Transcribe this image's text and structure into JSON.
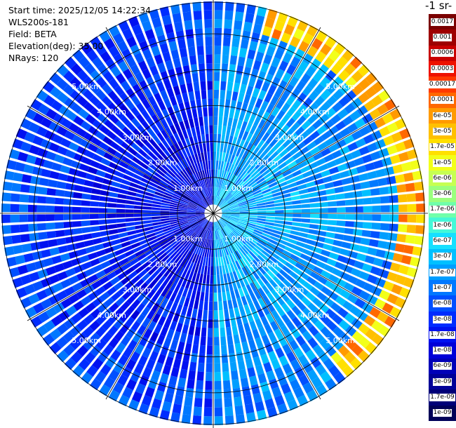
{
  "info": {
    "start_time": "Start time: 2025/12/05 14:22:34",
    "station": "WLS200s-181",
    "field": "Field: BETA",
    "elevation": "Elevation(deg): 35.00",
    "nrays": "NRays: 120"
  },
  "units_label": "-1 sr-",
  "colorbar": {
    "labels": [
      "0.0017",
      "0.001",
      "0.0006",
      "0.0003",
      "0.00017",
      "0.0001",
      "6e-05",
      "3e-05",
      "1.7e-05",
      "1e-05",
      "6e-06",
      "3e-06",
      "1.7e-06",
      "1e-06",
      "6e-07",
      "3e-07",
      "1.7e-07",
      "1e-07",
      "6e-08",
      "3e-08",
      "1.7e-08",
      "1e-08",
      "6e-09",
      "3e-09",
      "1.7e-09",
      "1e-09"
    ],
    "colors": [
      "#7a0000",
      "#9e0000",
      "#c80000",
      "#ee1200",
      "#ff3a00",
      "#ff6800",
      "#ff9a00",
      "#ffc000",
      "#ffe000",
      "#f2ff1a",
      "#c6ff52",
      "#9aff7e",
      "#70ffaa",
      "#44f8d8",
      "#16e0ff",
      "#00c0ff",
      "#009eff",
      "#0078ff",
      "#0050ff",
      "#002cff",
      "#0010f0",
      "#0000d8",
      "#0000b8",
      "#000098",
      "#000078",
      "#000058"
    ]
  },
  "chart_data": {
    "type": "polar_ppi",
    "field": "BETA",
    "elevation_deg": 35.0,
    "nrays": 120,
    "range_rings_km": [
      1,
      2,
      3,
      4,
      5
    ],
    "ring_labels": [
      "1.00km",
      "2.00km",
      "3.00km",
      "4.00km",
      "5.00km"
    ],
    "max_range_km": 5.9,
    "radial_spoke_step_deg": 30,
    "colorscale": "log",
    "vmin": "1e-09",
    "vmax": "0.0017",
    "sectors": [
      {
        "az_from": 0,
        "az_to": 180,
        "inner_level": "3e-07",
        "outer_level": "1e-07",
        "description_value": "1e-07"
      },
      {
        "az_from": 180,
        "az_to": 360,
        "inner_level": "1e-08",
        "outer_level": "6e-08",
        "description_value": "3e-08"
      }
    ],
    "high_band": {
      "az_from": 15,
      "az_to": 140,
      "range_km": [
        5.1,
        5.8
      ],
      "value": "3e-05"
    }
  }
}
